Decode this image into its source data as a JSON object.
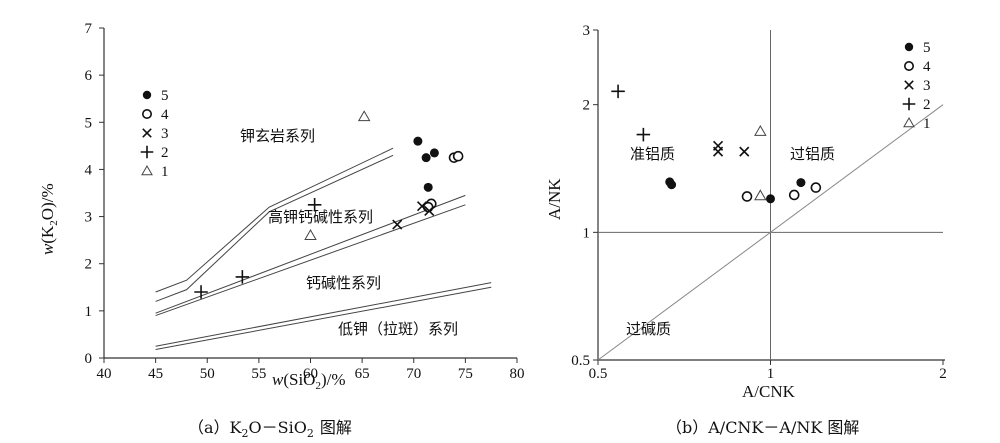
{
  "chart_data": [
    {
      "type": "scatter",
      "title": "(a) K₂O - SiO₂ 图解",
      "caption_parts": [
        "（a）K",
        "2",
        "O－SiO",
        "2",
        "图解"
      ],
      "xlabel": "w(SiO₂)/%",
      "ylabel": "w(K₂O)/%",
      "xlabel_parts": [
        "w",
        "(SiO",
        "2",
        ")/%"
      ],
      "ylabel_parts": [
        "w",
        "(K",
        "2",
        "O)/%"
      ],
      "xlim": [
        40,
        80
      ],
      "ylim": [
        0,
        7
      ],
      "xticks": [
        "40",
        "45",
        "50",
        "55",
        "60",
        "65",
        "70",
        "75",
        "80"
      ],
      "yticks": [
        "0",
        "1",
        "2",
        "3",
        "4",
        "5",
        "6",
        "7"
      ],
      "region_labels": [
        "钾玄岩系列",
        "高钾钙碱性系列",
        "钙碱性系列",
        "低钾（拉斑）系列"
      ],
      "boundaries": [
        {
          "name": "shoshonite",
          "lines": [
            [
              [
                45,
                1.4
              ],
              [
                48,
                1.65
              ],
              [
                56,
                3.2
              ],
              [
                68,
                4.45
              ]
            ],
            [
              [
                45,
                1.2
              ],
              [
                48,
                1.45
              ],
              [
                56,
                3.1
              ],
              [
                68,
                4.3
              ]
            ]
          ]
        },
        {
          "name": "high-k",
          "lines": [
            [
              [
                45,
                0.95
              ],
              [
                75,
                3.45
              ]
            ],
            [
              [
                45,
                0.9
              ],
              [
                75,
                3.25
              ]
            ]
          ]
        },
        {
          "name": "low-k",
          "lines": [
            [
              [
                45,
                0.25
              ],
              [
                77.5,
                1.6
              ]
            ],
            [
              [
                45,
                0.18
              ],
              [
                77.5,
                1.5
              ]
            ]
          ]
        }
      ],
      "series": [
        {
          "name": "5",
          "marker": "filled-circle",
          "points": [
            [
              70.4,
              4.6
            ],
            [
              71.2,
              4.25
            ],
            [
              72.0,
              4.35
            ],
            [
              71.4,
              3.62
            ]
          ]
        },
        {
          "name": "4",
          "marker": "open-circle",
          "points": [
            [
              73.9,
              4.25
            ],
            [
              74.3,
              4.28
            ],
            [
              71.7,
              3.27
            ],
            [
              71.4,
              3.2
            ]
          ]
        },
        {
          "name": "3",
          "marker": "x",
          "points": [
            [
              68.4,
              2.83
            ],
            [
              70.8,
              3.22
            ],
            [
              71.5,
              3.12
            ]
          ]
        },
        {
          "name": "2",
          "marker": "plus",
          "points": [
            [
              49.4,
              1.4
            ],
            [
              53.4,
              1.72
            ],
            [
              60.4,
              3.25
            ]
          ]
        },
        {
          "name": "1",
          "marker": "triangle",
          "points": [
            [
              65.2,
              5.12
            ],
            [
              60.0,
              2.6
            ]
          ]
        }
      ]
    },
    {
      "type": "scatter",
      "title": "(b) A/CNK - A/NK 图解",
      "caption": "（b）A/CNK－A/NK 图解",
      "xlabel": "A/CNK",
      "ylabel": "A/NK",
      "xlim": [
        0.5,
        2
      ],
      "ylim": [
        0.5,
        3
      ],
      "xscale": "log",
      "yscale": "log",
      "xticks": [
        "0.5",
        "1",
        "2"
      ],
      "yticks": [
        "0.5",
        "1",
        "2",
        "3"
      ],
      "region_labels": [
        "准铝质",
        "过铝质",
        "过碱质"
      ],
      "reference_lines": [
        "A/CNK = 1",
        "A/NK = 1",
        "A/NK = A/CNK"
      ],
      "series": [
        {
          "name": "5",
          "marker": "filled-circle",
          "points": [
            [
              0.667,
              1.315
            ],
            [
              0.672,
              1.295
            ],
            [
              1.0,
              1.2
            ],
            [
              1.13,
              1.31
            ]
          ]
        },
        {
          "name": "4",
          "marker": "open-circle",
          "points": [
            [
              0.91,
              1.215
            ],
            [
              1.1,
              1.225
            ],
            [
              1.2,
              1.275
            ]
          ]
        },
        {
          "name": "3",
          "marker": "x",
          "points": [
            [
              0.81,
              1.55
            ],
            [
              0.81,
              1.6
            ],
            [
              0.9,
              1.55
            ]
          ]
        },
        {
          "name": "2",
          "marker": "plus",
          "points": [
            [
              0.542,
              2.15
            ],
            [
              0.6,
              1.7
            ]
          ]
        },
        {
          "name": "1",
          "marker": "triangle",
          "points": [
            [
              0.96,
              1.73
            ],
            [
              0.96,
              1.22
            ]
          ]
        }
      ]
    }
  ],
  "legend_entries": [
    "5",
    "4",
    "3",
    "2",
    "1"
  ]
}
